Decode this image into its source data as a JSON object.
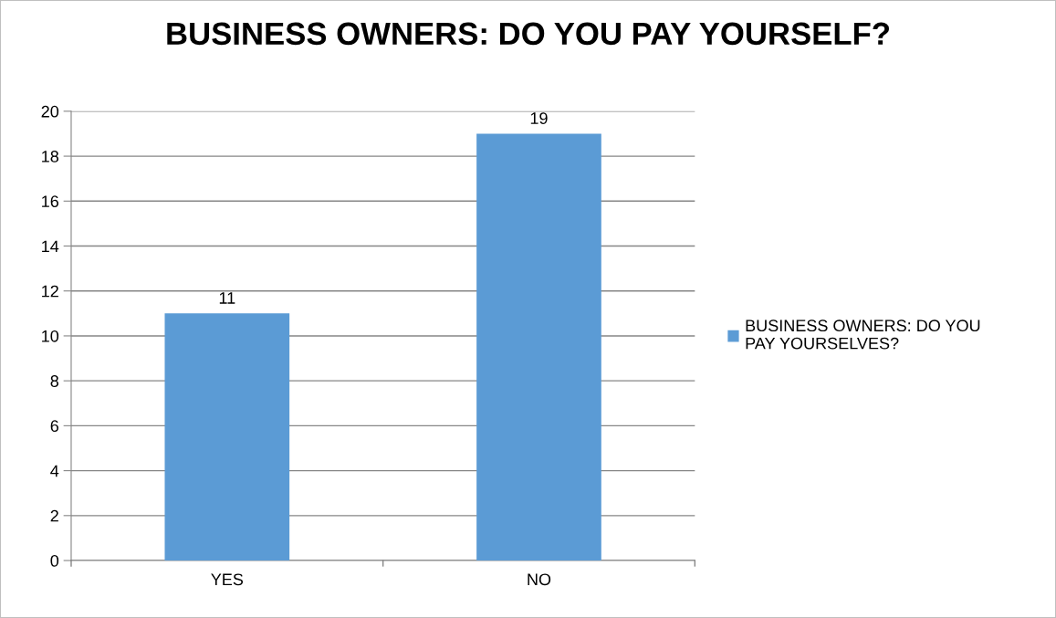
{
  "chart_data": {
    "type": "bar",
    "title": "BUSINESS OWNERS: DO YOU PAY YOURSELF?",
    "categories": [
      "YES",
      "NO"
    ],
    "series": [
      {
        "name": "BUSINESS OWNERS: DO YOU\nPAY YOURSELVES?",
        "color": "#5b9bd5",
        "values": [
          11,
          19
        ]
      }
    ],
    "ylim": [
      0,
      20
    ],
    "yticks": [
      0,
      2,
      4,
      6,
      8,
      10,
      12,
      14,
      16,
      18,
      20
    ],
    "grid": "y",
    "legend": "right",
    "data_labels": true
  }
}
